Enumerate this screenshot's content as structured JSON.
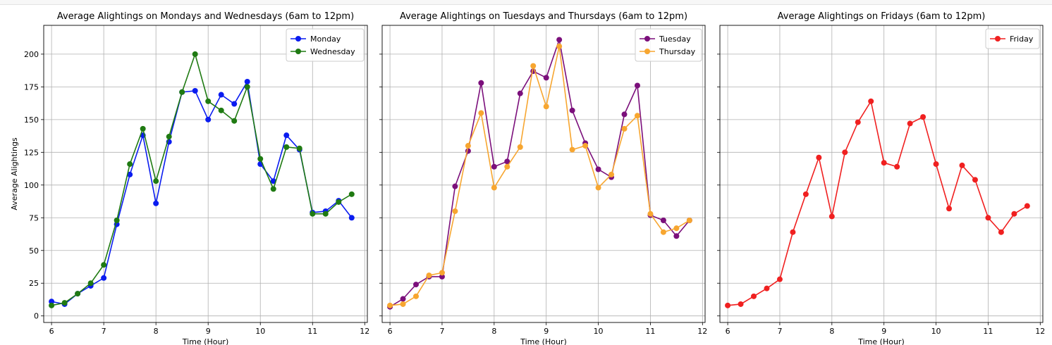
{
  "chart_data": [
    {
      "type": "line",
      "title": "Average Alightings on Mondays and Wednesdays (6am to 12pm)",
      "xlabel": "Time (Hour)",
      "ylabel": "Average Alightings",
      "xlim": [
        5.85,
        12.05
      ],
      "ylim": [
        -5,
        222
      ],
      "x_ticks": [
        "6",
        "7",
        "8",
        "9",
        "10",
        "11",
        "12"
      ],
      "y_ticks": [
        "0",
        "25",
        "50",
        "75",
        "100",
        "125",
        "150",
        "175",
        "200"
      ],
      "grid": true,
      "legend": "top-right",
      "x": [
        6,
        6.25,
        6.5,
        6.75,
        7,
        7.25,
        7.5,
        7.75,
        8,
        8.25,
        8.5,
        8.75,
        9,
        9.25,
        9.5,
        9.75,
        10,
        10.25,
        10.5,
        10.75,
        11,
        11.25,
        11.5,
        11.75
      ],
      "series": [
        {
          "name": "Monday",
          "color": "#0a1cf0",
          "values": [
            11,
            9,
            17,
            23,
            29,
            70,
            108,
            138,
            86,
            133,
            171,
            172,
            150,
            169,
            162,
            179,
            116,
            103,
            138,
            127,
            79,
            80,
            88,
            75
          ]
        },
        {
          "name": "Wednesday",
          "color": "#1f7a12",
          "values": [
            8,
            10,
            17,
            25,
            39,
            73,
            116,
            143,
            103,
            137,
            171,
            200,
            164,
            157,
            149,
            175,
            120,
            97,
            129,
            128,
            78,
            78,
            87,
            93
          ]
        }
      ]
    },
    {
      "type": "line",
      "title": "Average Alightings on Tuesdays and Thursdays (6am to 12pm)",
      "xlabel": "Time (Hour)",
      "ylabel": "",
      "xlim": [
        5.85,
        12.05
      ],
      "ylim": [
        -5,
        222
      ],
      "x_ticks": [
        "6",
        "7",
        "8",
        "9",
        "10",
        "11",
        "12"
      ],
      "y_ticks": [],
      "grid": true,
      "legend": "top-right",
      "x": [
        6,
        6.25,
        6.5,
        6.75,
        7,
        7.25,
        7.5,
        7.75,
        8,
        8.25,
        8.5,
        8.75,
        9,
        9.25,
        9.5,
        9.75,
        10,
        10.25,
        10.5,
        10.75,
        11,
        11.25,
        11.5,
        11.75
      ],
      "series": [
        {
          "name": "Tuesday",
          "color": "#7b0f7b",
          "values": [
            7,
            13,
            24,
            30,
            30,
            99,
            126,
            178,
            114,
            118,
            170,
            187,
            182,
            211,
            157,
            132,
            112,
            106,
            154,
            176,
            77,
            73,
            61,
            73
          ]
        },
        {
          "name": "Thursday",
          "color": "#f7a630",
          "values": [
            8,
            9,
            15,
            31,
            33,
            80,
            130,
            155,
            98,
            114,
            129,
            191,
            160,
            206,
            127,
            130,
            98,
            108,
            143,
            153,
            78,
            64,
            67,
            73
          ]
        }
      ]
    },
    {
      "type": "line",
      "title": "Average Alightings on Fridays (6am to 12pm)",
      "xlabel": "Time (Hour)",
      "ylabel": "",
      "xlim": [
        5.85,
        12.05
      ],
      "ylim": [
        -5,
        222
      ],
      "x_ticks": [
        "6",
        "7",
        "8",
        "9",
        "10",
        "11",
        "12"
      ],
      "y_ticks": [],
      "grid": true,
      "legend": "top-right",
      "x": [
        6,
        6.25,
        6.5,
        6.75,
        7,
        7.25,
        7.5,
        7.75,
        8,
        8.25,
        8.5,
        8.75,
        9,
        9.25,
        9.5,
        9.75,
        10,
        10.25,
        10.5,
        10.75,
        11,
        11.25,
        11.5,
        11.75
      ],
      "series": [
        {
          "name": "Friday",
          "color": "#f02020",
          "values": [
            8,
            9,
            15,
            21,
            28,
            64,
            93,
            121,
            76,
            125,
            148,
            164,
            117,
            114,
            147,
            152,
            116,
            82,
            115,
            104,
            75,
            64,
            78,
            84
          ]
        }
      ]
    }
  ]
}
